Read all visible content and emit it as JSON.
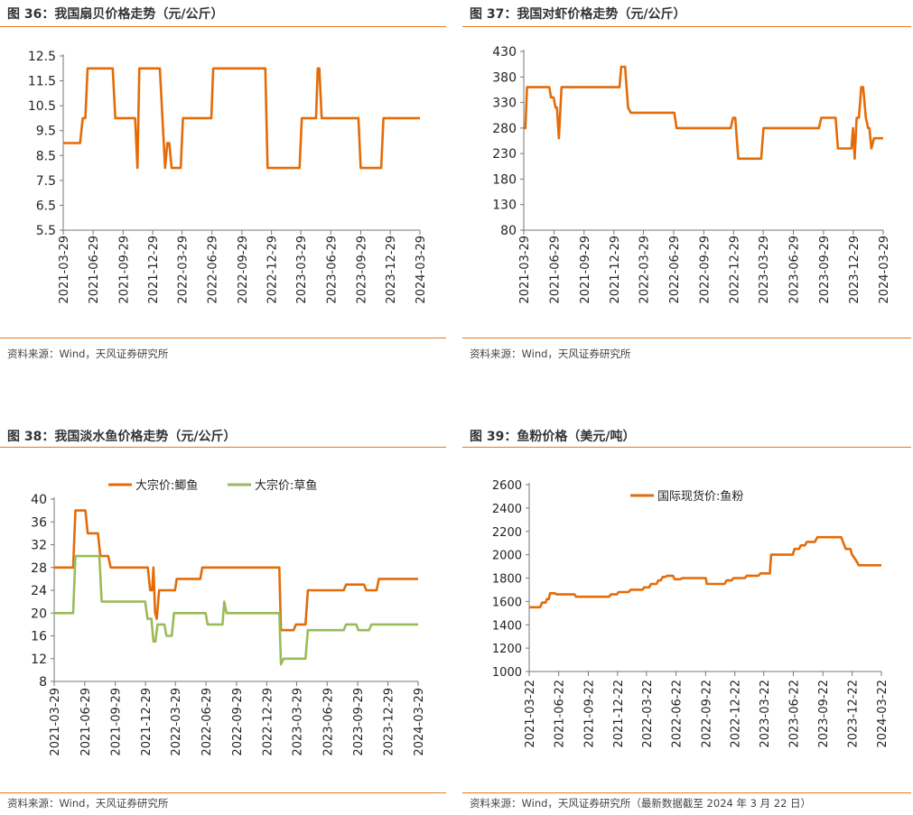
{
  "colors": {
    "orange": "#e36c09",
    "green": "#9bbb59",
    "rule": "#e6781e"
  },
  "panels": [
    {
      "title": "图 36：我国扇贝价格走势（元/公斤）",
      "source": "资料来源：Wind，天风证券研究所"
    },
    {
      "title": "图 37：我国对虾价格走势（元/公斤）",
      "source": "资料来源：Wind，天风证券研究所"
    },
    {
      "title": "图 38：我国淡水鱼价格走势（元/公斤）",
      "source": "资料来源：Wind，天风证券研究所"
    },
    {
      "title": "图 39：鱼粉价格（美元/吨）",
      "source": "资料来源：Wind，天风证券研究所（最新数据截至 2024 年 3 月 22 日）"
    }
  ],
  "chart_data": [
    {
      "type": "line",
      "title": "图 36：我国扇贝价格走势（元/公斤）",
      "x_ticks": [
        "2021-03-29",
        "2021-06-29",
        "2021-09-29",
        "2021-12-29",
        "2022-03-29",
        "2022-06-29",
        "2022-09-29",
        "2022-12-29",
        "2023-03-29",
        "2023-06-29",
        "2023-09-29",
        "2023-12-29",
        "2024-03-29"
      ],
      "y_ticks": [
        "12.5",
        "11.5",
        "10.5",
        "9.5",
        "8.5",
        "7.5",
        "6.5",
        "5.5"
      ],
      "ylim": [
        5.5,
        12.5
      ],
      "grid": false,
      "legend": "none",
      "series": [
        {
          "name": "",
          "color": "#e36c09",
          "points": [
            [
              "2021-03-29",
              9.0
            ],
            [
              "2021-05-20",
              9.0
            ],
            [
              "2021-05-28",
              10.0
            ],
            [
              "2021-06-05",
              10.0
            ],
            [
              "2021-06-12",
              12.0
            ],
            [
              "2021-08-28",
              12.0
            ],
            [
              "2021-09-05",
              10.0
            ],
            [
              "2021-11-05",
              10.0
            ],
            [
              "2021-11-12",
              8.0
            ],
            [
              "2021-11-18",
              12.0
            ],
            [
              "2022-01-20",
              12.0
            ],
            [
              "2022-01-28",
              10.0
            ],
            [
              "2022-02-05",
              8.0
            ],
            [
              "2022-02-12",
              9.0
            ],
            [
              "2022-02-18",
              9.0
            ],
            [
              "2022-02-25",
              8.0
            ],
            [
              "2022-03-25",
              8.0
            ],
            [
              "2022-04-01",
              10.0
            ],
            [
              "2022-06-27",
              10.0
            ],
            [
              "2022-07-03",
              12.0
            ],
            [
              "2022-12-10",
              12.0
            ],
            [
              "2022-12-17",
              8.0
            ],
            [
              "2023-03-25",
              8.0
            ],
            [
              "2023-04-01",
              10.0
            ],
            [
              "2023-05-15",
              10.0
            ],
            [
              "2023-05-20",
              12.0
            ],
            [
              "2023-05-25",
              12.0
            ],
            [
              "2023-06-01",
              10.0
            ],
            [
              "2023-09-22",
              10.0
            ],
            [
              "2023-09-29",
              8.0
            ],
            [
              "2023-12-01",
              8.0
            ],
            [
              "2023-12-08",
              10.0
            ],
            [
              "2024-03-29",
              10.0
            ]
          ]
        }
      ]
    },
    {
      "type": "line",
      "title": "图 37：我国对虾价格走势（元/公斤）",
      "x_ticks": [
        "2021-03-29",
        "2021-06-29",
        "2021-09-29",
        "2021-12-29",
        "2022-03-29",
        "2022-06-29",
        "2022-09-29",
        "2022-12-29",
        "2023-03-29",
        "2023-06-29",
        "2023-09-29",
        "2023-12-29",
        "2024-03-29"
      ],
      "y_ticks": [
        "430",
        "380",
        "330",
        "280",
        "230",
        "180",
        "130",
        "80"
      ],
      "ylim": [
        80,
        430
      ],
      "grid": false,
      "legend": "none",
      "series": [
        {
          "name": "",
          "color": "#e36c09",
          "points": [
            [
              "2021-03-29",
              280
            ],
            [
              "2021-04-03",
              280
            ],
            [
              "2021-04-08",
              360
            ],
            [
              "2021-06-15",
              360
            ],
            [
              "2021-06-20",
              340
            ],
            [
              "2021-06-28",
              340
            ],
            [
              "2021-07-04",
              320
            ],
            [
              "2021-07-08",
              320
            ],
            [
              "2021-07-14",
              260
            ],
            [
              "2021-07-22",
              360
            ],
            [
              "2022-01-15",
              360
            ],
            [
              "2022-01-20",
              400
            ],
            [
              "2022-02-01",
              400
            ],
            [
              "2022-02-10",
              320
            ],
            [
              "2022-02-18",
              310
            ],
            [
              "2022-07-01",
              310
            ],
            [
              "2022-07-08",
              280
            ],
            [
              "2022-12-20",
              280
            ],
            [
              "2022-12-27",
              300
            ],
            [
              "2023-01-03",
              300
            ],
            [
              "2023-01-12",
              220
            ],
            [
              "2023-03-23",
              220
            ],
            [
              "2023-03-30",
              280
            ],
            [
              "2023-09-15",
              280
            ],
            [
              "2023-09-22",
              300
            ],
            [
              "2023-11-05",
              300
            ],
            [
              "2023-11-12",
              240
            ],
            [
              "2023-12-23",
              240
            ],
            [
              "2023-12-28",
              280
            ],
            [
              "2024-01-02",
              220
            ],
            [
              "2024-01-08",
              300
            ],
            [
              "2024-01-15",
              300
            ],
            [
              "2024-01-22",
              360
            ],
            [
              "2024-01-28",
              360
            ],
            [
              "2024-02-05",
              300
            ],
            [
              "2024-02-12",
              280
            ],
            [
              "2024-02-16",
              280
            ],
            [
              "2024-02-22",
              240
            ],
            [
              "2024-03-01",
              260
            ],
            [
              "2024-03-29",
              260
            ]
          ]
        }
      ]
    },
    {
      "type": "line",
      "title": "图 38：我国淡水鱼价格走势（元/公斤）",
      "x_ticks": [
        "2021-03-29",
        "2021-06-29",
        "2021-09-29",
        "2021-12-29",
        "2022-03-29",
        "2022-06-29",
        "2022-09-29",
        "2022-12-29",
        "2023-03-29",
        "2023-06-29",
        "2023-09-29",
        "2023-12-29",
        "2024-03-29"
      ],
      "y_ticks": [
        "40",
        "36",
        "32",
        "28",
        "24",
        "20",
        "16",
        "12",
        "8"
      ],
      "ylim": [
        8,
        40
      ],
      "grid": false,
      "legend": "top-center",
      "series": [
        {
          "name": "大宗价:鲫鱼",
          "color": "#e36c09",
          "points": [
            [
              "2021-03-29",
              28
            ],
            [
              "2021-05-25",
              28
            ],
            [
              "2021-06-01",
              38
            ],
            [
              "2021-07-01",
              38
            ],
            [
              "2021-07-08",
              34
            ],
            [
              "2021-08-08",
              34
            ],
            [
              "2021-08-15",
              30
            ],
            [
              "2021-09-08",
              30
            ],
            [
              "2021-09-15",
              28
            ],
            [
              "2022-01-05",
              28
            ],
            [
              "2022-01-12",
              24
            ],
            [
              "2022-01-18",
              24
            ],
            [
              "2022-01-22",
              28
            ],
            [
              "2022-01-27",
              20
            ],
            [
              "2022-02-01",
              19
            ],
            [
              "2022-02-08",
              24
            ],
            [
              "2022-03-28",
              24
            ],
            [
              "2022-04-02",
              26
            ],
            [
              "2022-06-12",
              26
            ],
            [
              "2022-06-18",
              28
            ],
            [
              "2023-02-05",
              28
            ],
            [
              "2023-02-10",
              17
            ],
            [
              "2023-03-20",
              17
            ],
            [
              "2023-03-27",
              18
            ],
            [
              "2023-04-25",
              18
            ],
            [
              "2023-05-02",
              24
            ],
            [
              "2023-08-18",
              24
            ],
            [
              "2023-08-25",
              25
            ],
            [
              "2023-10-18",
              25
            ],
            [
              "2023-10-25",
              24
            ],
            [
              "2023-11-25",
              24
            ],
            [
              "2023-12-02",
              26
            ],
            [
              "2024-03-29",
              26
            ]
          ]
        },
        {
          "name": "大宗价:草鱼",
          "color": "#9bbb59",
          "points": [
            [
              "2021-03-29",
              20
            ],
            [
              "2021-05-25",
              20
            ],
            [
              "2021-06-01",
              30
            ],
            [
              "2021-08-12",
              30
            ],
            [
              "2021-08-19",
              22
            ],
            [
              "2021-12-28",
              22
            ],
            [
              "2022-01-04",
              19
            ],
            [
              "2022-01-16",
              19
            ],
            [
              "2022-01-22",
              15
            ],
            [
              "2022-01-28",
              15
            ],
            [
              "2022-02-03",
              18
            ],
            [
              "2022-02-24",
              18
            ],
            [
              "2022-03-02",
              16
            ],
            [
              "2022-03-18",
              16
            ],
            [
              "2022-03-25",
              20
            ],
            [
              "2022-06-28",
              20
            ],
            [
              "2022-07-04",
              18
            ],
            [
              "2022-08-18",
              18
            ],
            [
              "2022-08-23",
              22
            ],
            [
              "2022-08-30",
              20
            ],
            [
              "2023-02-05",
              20
            ],
            [
              "2023-02-10",
              11
            ],
            [
              "2023-02-18",
              12
            ],
            [
              "2023-04-25",
              12
            ],
            [
              "2023-05-02",
              17
            ],
            [
              "2023-08-18",
              17
            ],
            [
              "2023-08-25",
              18
            ],
            [
              "2023-09-25",
              18
            ],
            [
              "2023-10-01",
              17
            ],
            [
              "2023-11-02",
              17
            ],
            [
              "2023-11-09",
              18
            ],
            [
              "2024-03-29",
              18
            ]
          ]
        }
      ]
    },
    {
      "type": "line",
      "title": "图 39：鱼粉价格（美元/吨）",
      "x_ticks": [
        "2021-03-22",
        "2021-06-22",
        "2021-09-22",
        "2021-12-22",
        "2022-03-22",
        "2022-06-22",
        "2022-09-22",
        "2022-12-22",
        "2023-03-22",
        "2023-06-22",
        "2023-09-22",
        "2023-12-22",
        "2024-03-22"
      ],
      "y_ticks": [
        "2600",
        "2400",
        "2200",
        "2000",
        "1800",
        "1600",
        "1400",
        "1200",
        "1000"
      ],
      "ylim": [
        1000,
        2600
      ],
      "grid": false,
      "legend": "top-center",
      "series": [
        {
          "name": "国际现货价:鱼粉",
          "color": "#e36c09",
          "points": [
            [
              "2021-03-22",
              1550
            ],
            [
              "2021-04-25",
              1550
            ],
            [
              "2021-05-01",
              1590
            ],
            [
              "2021-05-12",
              1590
            ],
            [
              "2021-05-16",
              1620
            ],
            [
              "2021-05-22",
              1620
            ],
            [
              "2021-05-26",
              1670
            ],
            [
              "2021-06-10",
              1670
            ],
            [
              "2021-06-15",
              1660
            ],
            [
              "2021-08-10",
              1660
            ],
            [
              "2021-08-15",
              1640
            ],
            [
              "2021-11-25",
              1640
            ],
            [
              "2021-12-02",
              1660
            ],
            [
              "2021-12-20",
              1660
            ],
            [
              "2021-12-25",
              1680
            ],
            [
              "2022-01-25",
              1680
            ],
            [
              "2022-02-01",
              1700
            ],
            [
              "2022-03-10",
              1700
            ],
            [
              "2022-03-15",
              1720
            ],
            [
              "2022-03-30",
              1720
            ],
            [
              "2022-04-05",
              1750
            ],
            [
              "2022-04-22",
              1750
            ],
            [
              "2022-04-28",
              1780
            ],
            [
              "2022-05-05",
              1780
            ],
            [
              "2022-05-12",
              1810
            ],
            [
              "2022-05-20",
              1810
            ],
            [
              "2022-05-26",
              1820
            ],
            [
              "2022-06-12",
              1820
            ],
            [
              "2022-06-18",
              1790
            ],
            [
              "2022-07-05",
              1790
            ],
            [
              "2022-07-12",
              1800
            ],
            [
              "2022-09-22",
              1800
            ],
            [
              "2022-09-26",
              1750
            ],
            [
              "2022-11-20",
              1750
            ],
            [
              "2022-11-26",
              1780
            ],
            [
              "2022-12-12",
              1780
            ],
            [
              "2022-12-18",
              1800
            ],
            [
              "2023-01-22",
              1800
            ],
            [
              "2023-01-28",
              1820
            ],
            [
              "2023-03-05",
              1820
            ],
            [
              "2023-03-12",
              1840
            ],
            [
              "2023-04-10",
              1840
            ],
            [
              "2023-04-14",
              2000
            ],
            [
              "2023-06-20",
              2000
            ],
            [
              "2023-06-26",
              2050
            ],
            [
              "2023-07-10",
              2050
            ],
            [
              "2023-07-15",
              2080
            ],
            [
              "2023-07-28",
              2080
            ],
            [
              "2023-08-03",
              2110
            ],
            [
              "2023-08-28",
              2110
            ],
            [
              "2023-09-05",
              2150
            ],
            [
              "2023-11-18",
              2150
            ],
            [
              "2023-11-25",
              2100
            ],
            [
              "2023-12-02",
              2050
            ],
            [
              "2023-12-16",
              2050
            ],
            [
              "2023-12-22",
              2000
            ],
            [
              "2024-01-01",
              1960
            ],
            [
              "2024-01-12",
              1910
            ],
            [
              "2024-03-22",
              1910
            ]
          ]
        }
      ]
    }
  ]
}
